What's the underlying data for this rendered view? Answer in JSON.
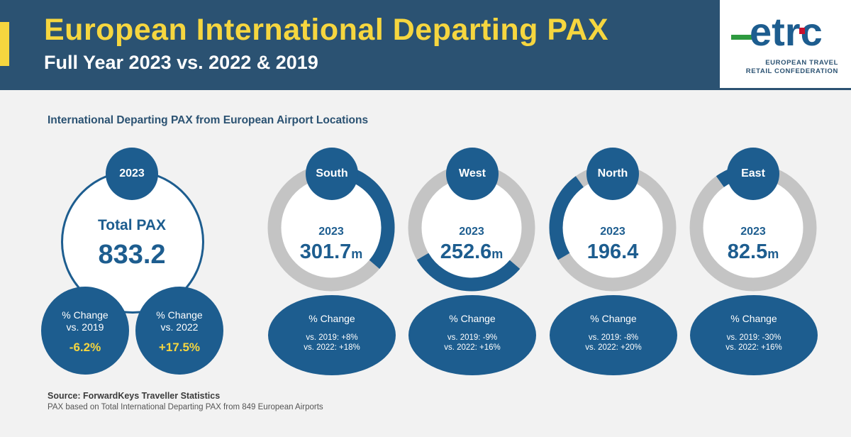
{
  "header": {
    "title": "European International Departing PAX",
    "subtitle": "Full Year 2023 vs. 2022 & 2019"
  },
  "logo": {
    "wordmark": "etrc",
    "line1": "EUROPEAN TRAVEL",
    "line2": "RETAIL CONFEDERATION"
  },
  "section_heading": "International Departing PAX from European Airport Locations",
  "total": {
    "year": "2023",
    "label": "Total PAX",
    "value": "833.2",
    "change_title": "% Change",
    "vs2019_label": "vs. 2019",
    "vs2019_value": "-6.2%",
    "vs2022_label": "vs. 2022",
    "vs2022_value": "+17.5%"
  },
  "chart_data": {
    "type": "pie",
    "title": "International Departing PAX from European Airport Locations",
    "total_year": "2023",
    "total_label": "Total PAX",
    "total_value": 833.2,
    "total_change": {
      "vs_2019": "-6.2%",
      "vs_2022": "+17.5%"
    },
    "regions": [
      {
        "name": "South",
        "year": "2023",
        "value": 301.7,
        "value_text": "301.7",
        "unit": "m",
        "change_title": "% Change",
        "vs2019": "vs. 2019: +8%",
        "vs2022": "vs. 2022: +18%"
      },
      {
        "name": "West",
        "year": "2023",
        "value": 252.6,
        "value_text": "252.6",
        "unit": "m",
        "change_title": "% Change",
        "vs2019": "vs. 2019: -9%",
        "vs2022": "vs. 2022: +16%"
      },
      {
        "name": "North",
        "year": "2023",
        "value": 196.4,
        "value_text": "196.4",
        "unit": "",
        "change_title": "% Change",
        "vs2019": "vs. 2019: -8%",
        "vs2022": "vs. 2022: +20%"
      },
      {
        "name": "East",
        "year": "2023",
        "value": 82.5,
        "value_text": "82.5",
        "unit": "m",
        "change_title": "% Change",
        "vs2019": "vs. 2019: -30%",
        "vs2022": "vs. 2022: +16%"
      }
    ],
    "colors": {
      "segment": "#1d5d8f",
      "track": "#c4c4c4",
      "accent": "#f6d63f",
      "header": "#2b5272"
    }
  },
  "footer": {
    "source": "Source: ForwardKeys Traveller Statistics",
    "note": "PAX based on Total International Departing PAX from 849 European Airports"
  }
}
